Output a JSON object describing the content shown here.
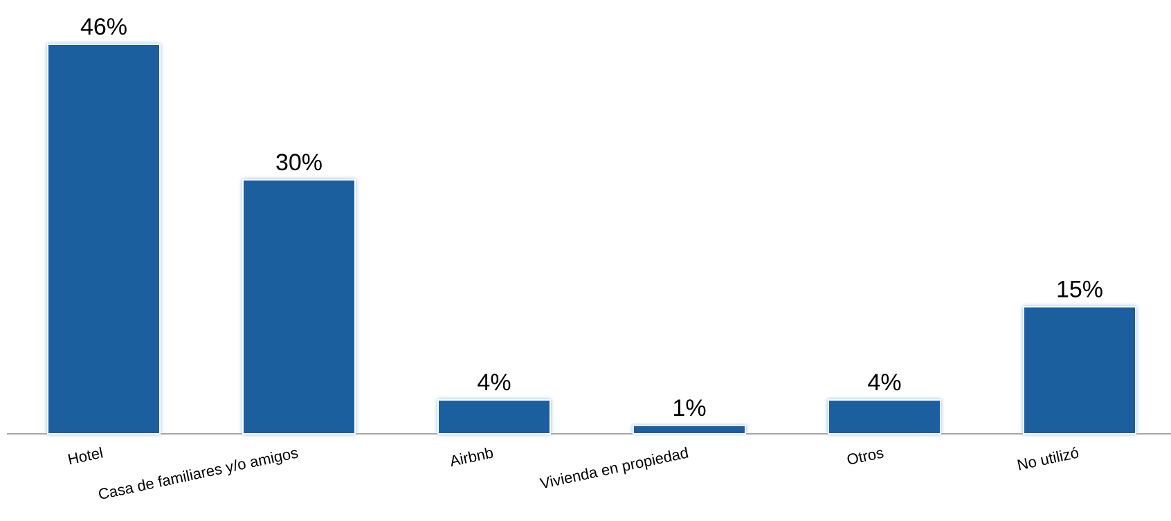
{
  "chart_data": {
    "type": "bar",
    "categories": [
      "Hotel",
      "Casa de familiares y/o amigos",
      "Airbnb",
      "Vivienda en propiedad",
      "Otros",
      "No utilizó"
    ],
    "values": [
      46,
      30,
      4,
      1,
      4,
      15
    ],
    "value_labels": [
      "46%",
      "30%",
      "4%",
      "1%",
      "4%",
      "15%"
    ],
    "color": "#1f5f9e"
  }
}
